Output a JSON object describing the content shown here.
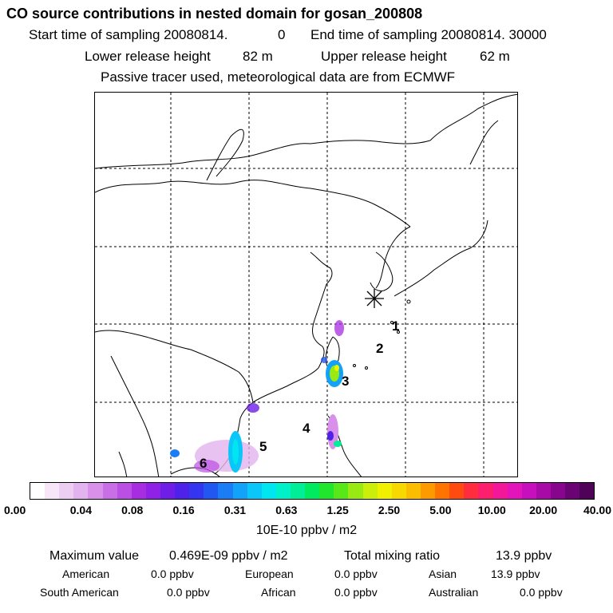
{
  "header": {
    "title": "CO  source contributions in nested domain for gosan_200808",
    "start_label": "Start time of sampling 20080814.",
    "start_value": "0",
    "end_label": "End time of sampling 20080814. 30000",
    "lower_label": "Lower release height",
    "lower_value": "82 m",
    "upper_label": "Upper release height",
    "upper_value": "62 m",
    "tracer_note": "Passive tracer used, meteorological data are from ECMWF"
  },
  "map": {
    "receptor_marker": "asterisk-icon",
    "source_labels": [
      "1",
      "2",
      "3",
      "4",
      "5",
      "6"
    ]
  },
  "colorbar": {
    "colors": [
      "#ffffff",
      "#f7e6f7",
      "#edcdf2",
      "#e2b3ee",
      "#d890ea",
      "#c96fe6",
      "#bb4fe3",
      "#a72ee0",
      "#8f22e6",
      "#6e1ee6",
      "#4f22ea",
      "#3336ee",
      "#2257f2",
      "#1a7df5",
      "#12a3f8",
      "#0bc6f9",
      "#00e6f0",
      "#00f0c8",
      "#00ee98",
      "#00ea60",
      "#20e62e",
      "#58e81a",
      "#98ea12",
      "#cbee0a",
      "#f0f000",
      "#f7d800",
      "#fbbd00",
      "#fd9a00",
      "#ff7400",
      "#ff4a10",
      "#ff2d3d",
      "#fb1f6e",
      "#f21899",
      "#e214ba",
      "#c80fbe",
      "#a80aa8",
      "#88068e",
      "#6a0474",
      "#4e0258"
    ],
    "tick_labels": [
      "0.00",
      "0.04",
      "0.08",
      "0.16",
      "0.31",
      "0.63",
      "1.25",
      "2.50",
      "5.00",
      "10.00",
      "20.00",
      "40.00"
    ],
    "unit": "10E-10 ppbv / m2"
  },
  "stats": {
    "max_label": "Maximum value",
    "max_value": "0.469E-09 ppbv / m2",
    "total_label": "Total mixing ratio",
    "total_value": "13.9 ppbv",
    "regions": [
      {
        "name": "American",
        "value": "0.0 ppbv"
      },
      {
        "name": "European",
        "value": "0.0 ppbv"
      },
      {
        "name": "Asian",
        "value": "13.9 ppbv"
      },
      {
        "name": "South American",
        "value": "0.0 ppbv"
      },
      {
        "name": "African",
        "value": "0.0 ppbv"
      },
      {
        "name": "Australian",
        "value": "0.0 ppbv"
      }
    ]
  }
}
